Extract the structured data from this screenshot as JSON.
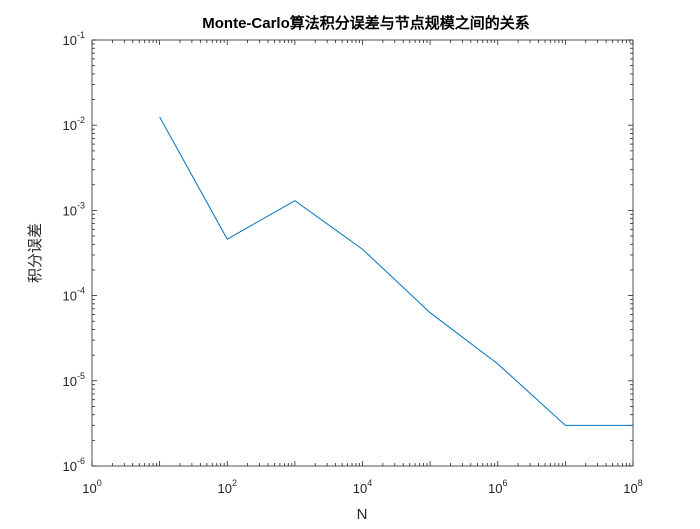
{
  "chart_data": {
    "type": "line",
    "title": "Monte-Carlo算法积分误差与节点规模之间的关系",
    "xlabel": "N",
    "ylabel": "积分误差",
    "xscale": "log",
    "yscale": "log",
    "xlim": [
      1,
      100000000
    ],
    "ylim": [
      1e-06,
      0.1
    ],
    "grid": false,
    "box": true,
    "x_tick_labels": [
      {
        "base": "10",
        "exp": "0"
      },
      {
        "base": "10",
        "exp": "2"
      },
      {
        "base": "10",
        "exp": "4"
      },
      {
        "base": "10",
        "exp": "6"
      },
      {
        "base": "10",
        "exp": "8"
      }
    ],
    "y_tick_labels": [
      {
        "base": "10",
        "exp": "-6"
      },
      {
        "base": "10",
        "exp": "-5"
      },
      {
        "base": "10",
        "exp": "-4"
      },
      {
        "base": "10",
        "exp": "-3"
      },
      {
        "base": "10",
        "exp": "-2"
      },
      {
        "base": "10",
        "exp": "-1"
      }
    ],
    "series": [
      {
        "color": "#0072BD",
        "x": [
          10,
          100,
          1000,
          10000,
          100000,
          1000000,
          10000000,
          100000000
        ],
        "y": [
          0.0125,
          0.00046,
          0.0013,
          0.00035,
          6.3e-05,
          1.58e-05,
          3e-06,
          3e-06
        ]
      }
    ]
  }
}
